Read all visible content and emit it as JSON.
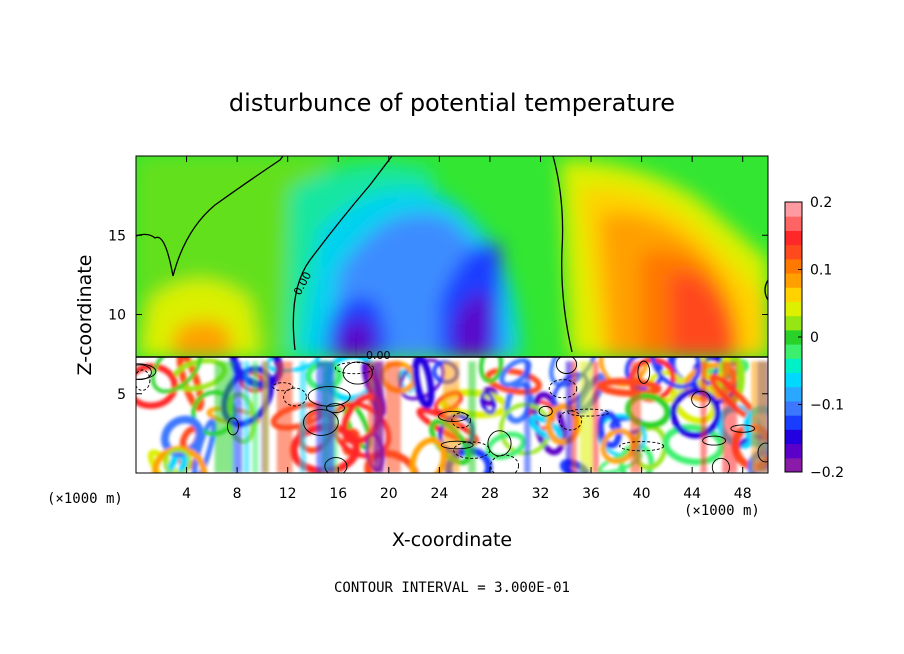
{
  "chart_data": {
    "type": "heatmap",
    "title": "disturbunce of potential temperature",
    "xlabel": "X-coordinate",
    "ylabel": "Z-coordinate",
    "x_unit": "(×1000 m)",
    "y_unit": "(×1000 m)",
    "xlim": [
      0,
      50
    ],
    "ylim": [
      0,
      20
    ],
    "x_ticks": [
      4,
      8,
      12,
      16,
      20,
      24,
      28,
      32,
      36,
      40,
      44,
      48
    ],
    "y_ticks": [
      5,
      10,
      15
    ],
    "colorbar": {
      "range": [
        -0.2,
        0.2
      ],
      "ticks": [
        {
          "value": 0.2,
          "label": "0.2"
        },
        {
          "value": 0.1,
          "label": "0.1"
        },
        {
          "value": 0.0,
          "label": "0"
        },
        {
          "value": -0.1,
          "label": "−0.1"
        },
        {
          "value": -0.2,
          "label": "−0.2"
        }
      ],
      "colors": [
        "#8a1aa8",
        "#5a00c8",
        "#2200e0",
        "#1a3cff",
        "#3c78ff",
        "#2aa8ff",
        "#00d8ff",
        "#00f0c8",
        "#3cf06e",
        "#28d228",
        "#96e614",
        "#dcf000",
        "#ffd200",
        "#ffa000",
        "#ff7800",
        "#ff4a1e",
        "#ff2828",
        "#ff6464",
        "#ff9aa0"
      ]
    },
    "contour_interval_note": "CONTOUR INTERVAL = 3.000E-01",
    "contour_labels": [
      "0.00",
      "0.00"
    ],
    "boundary_layer_top_z": 7.3,
    "features": [
      {
        "kind": "negative-anomaly",
        "x": 17,
        "z": 10.5,
        "value": -0.16
      },
      {
        "kind": "negative-anomaly",
        "x": 22,
        "z": 14,
        "value": -0.08
      },
      {
        "kind": "negative-anomaly",
        "x": 26,
        "z": 9.5,
        "value": -0.18
      },
      {
        "kind": "positive-anomaly",
        "x": 45,
        "z": 11,
        "value": 0.14
      },
      {
        "kind": "positive-anomaly",
        "x": 37,
        "z": 15,
        "value": 0.09
      },
      {
        "kind": "positive-anomaly",
        "x": 5,
        "z": 10,
        "value": 0.06
      }
    ]
  }
}
